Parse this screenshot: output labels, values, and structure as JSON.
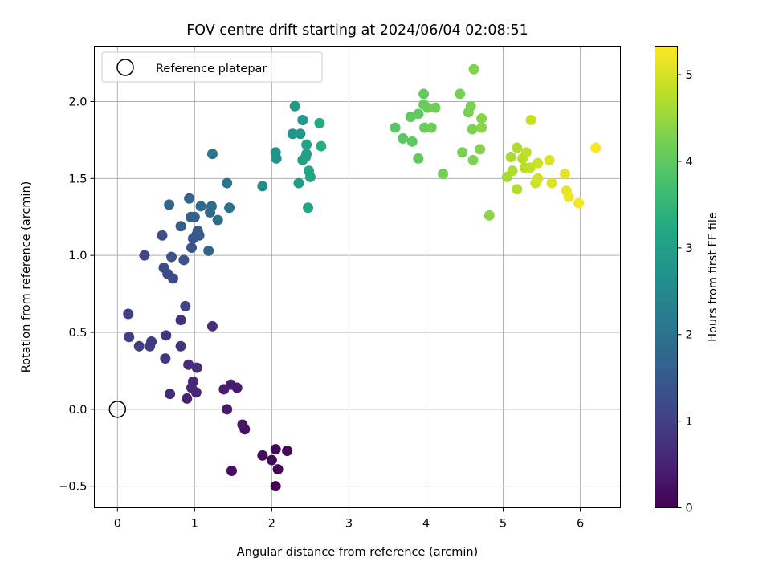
{
  "chart_data": {
    "type": "scatter",
    "title": "FOV centre drift starting at 2024/06/04 02:08:51",
    "xlabel": "Angular distance from reference (arcmin)",
    "ylabel": "Rotation from reference (arcmin)",
    "xlim": [
      -0.3,
      6.52
    ],
    "ylim": [
      -0.64,
      2.36
    ],
    "xticks": [
      0,
      1,
      2,
      3,
      4,
      5,
      6
    ],
    "yticks": [
      -0.5,
      0.0,
      0.5,
      1.0,
      1.5,
      2.0
    ],
    "xtick_labels": [
      "0",
      "1",
      "2",
      "3",
      "4",
      "5",
      "6"
    ],
    "ytick_labels": [
      "−0.5",
      "0.0",
      "0.5",
      "1.0",
      "1.5",
      "2.0"
    ],
    "grid": true,
    "legend": {
      "location": "upper-left",
      "entries": [
        "Reference platepar"
      ]
    },
    "reference_point": {
      "x": 0,
      "y": 0
    },
    "colorbar": {
      "label": "Hours from first FF file",
      "range": [
        0,
        5.33
      ],
      "ticks": [
        0,
        1,
        2,
        3,
        4,
        5
      ],
      "tick_labels": [
        "0",
        "1",
        "2",
        "3",
        "4",
        "5"
      ],
      "colormap": "viridis"
    },
    "points": [
      [
        2.05,
        -0.5,
        0.02
      ],
      [
        2.08,
        -0.39,
        0.05
      ],
      [
        2.05,
        -0.26,
        0.08
      ],
      [
        2.2,
        -0.27,
        0.1
      ],
      [
        2.0,
        -0.33,
        0.12
      ],
      [
        1.88,
        -0.3,
        0.15
      ],
      [
        1.48,
        -0.4,
        0.2
      ],
      [
        1.65,
        -0.13,
        0.28
      ],
      [
        1.62,
        -0.1,
        0.32
      ],
      [
        1.42,
        0.0,
        0.36
      ],
      [
        1.55,
        0.14,
        0.4
      ],
      [
        1.47,
        0.16,
        0.44
      ],
      [
        1.38,
        0.13,
        0.48
      ],
      [
        0.9,
        0.07,
        0.52
      ],
      [
        1.02,
        0.11,
        0.55
      ],
      [
        0.98,
        0.18,
        0.58
      ],
      [
        0.96,
        0.14,
        0.6
      ],
      [
        0.92,
        0.29,
        0.63
      ],
      [
        0.68,
        0.1,
        0.65
      ],
      [
        1.03,
        0.27,
        0.68
      ],
      [
        1.23,
        0.54,
        0.72
      ],
      [
        0.82,
        0.58,
        0.75
      ],
      [
        0.82,
        0.41,
        0.78
      ],
      [
        0.63,
        0.48,
        0.82
      ],
      [
        0.62,
        0.33,
        0.85
      ],
      [
        0.44,
        0.44,
        0.88
      ],
      [
        0.42,
        0.41,
        0.92
      ],
      [
        0.28,
        0.41,
        0.96
      ],
      [
        0.15,
        0.47,
        1.0
      ],
      [
        0.14,
        0.62,
        1.04
      ],
      [
        0.88,
        0.67,
        1.08
      ],
      [
        0.35,
        1.0,
        1.1
      ],
      [
        0.72,
        0.85,
        1.14
      ],
      [
        0.65,
        0.88,
        1.18
      ],
      [
        0.6,
        0.92,
        1.22
      ],
      [
        0.58,
        1.13,
        1.26
      ],
      [
        0.7,
        0.99,
        1.3
      ],
      [
        0.86,
        0.97,
        1.34
      ],
      [
        0.96,
        1.05,
        1.38
      ],
      [
        0.98,
        1.11,
        1.42
      ],
      [
        1.02,
        1.13,
        1.46
      ],
      [
        1.04,
        1.16,
        1.5
      ],
      [
        1.06,
        1.13,
        1.54
      ],
      [
        0.82,
        1.19,
        1.58
      ],
      [
        0.95,
        1.25,
        1.62
      ],
      [
        1.0,
        1.25,
        1.66
      ],
      [
        0.93,
        1.37,
        1.7
      ],
      [
        0.67,
        1.33,
        1.74
      ],
      [
        1.18,
        1.03,
        1.78
      ],
      [
        1.08,
        1.32,
        1.82
      ],
      [
        1.2,
        1.28,
        1.86
      ],
      [
        1.22,
        1.32,
        1.9
      ],
      [
        1.3,
        1.23,
        1.94
      ],
      [
        1.45,
        1.31,
        1.98
      ],
      [
        1.42,
        1.47,
        2.04
      ],
      [
        1.23,
        1.66,
        2.1
      ],
      [
        1.88,
        1.45,
        2.6
      ],
      [
        2.05,
        1.67,
        2.66
      ],
      [
        2.06,
        1.63,
        2.72
      ],
      [
        2.27,
        1.79,
        2.76
      ],
      [
        2.37,
        1.79,
        2.8
      ],
      [
        2.3,
        1.97,
        2.84
      ],
      [
        2.4,
        1.88,
        2.88
      ],
      [
        2.35,
        1.47,
        2.92
      ],
      [
        2.4,
        1.62,
        2.96
      ],
      [
        2.44,
        1.64,
        3.0
      ],
      [
        2.45,
        1.66,
        3.04
      ],
      [
        2.45,
        1.72,
        3.08
      ],
      [
        2.48,
        1.55,
        3.12
      ],
      [
        2.5,
        1.51,
        3.16
      ],
      [
        2.47,
        1.31,
        3.2
      ],
      [
        2.62,
        1.86,
        3.24
      ],
      [
        2.64,
        1.71,
        3.28
      ],
      [
        3.6,
        1.83,
        3.94
      ],
      [
        3.7,
        1.76,
        3.96
      ],
      [
        3.82,
        1.74,
        3.98
      ],
      [
        3.8,
        1.9,
        4.0
      ],
      [
        3.9,
        1.92,
        4.02
      ],
      [
        3.9,
        1.63,
        4.04
      ],
      [
        3.97,
        2.05,
        4.06
      ],
      [
        3.97,
        1.98,
        4.08
      ],
      [
        3.98,
        1.83,
        4.1
      ],
      [
        4.02,
        1.96,
        4.12
      ],
      [
        4.07,
        1.83,
        4.14
      ],
      [
        4.12,
        1.96,
        4.16
      ],
      [
        4.22,
        1.53,
        4.18
      ],
      [
        4.44,
        2.05,
        4.2
      ],
      [
        4.47,
        1.67,
        4.22
      ],
      [
        4.55,
        1.93,
        4.24
      ],
      [
        4.58,
        1.97,
        4.26
      ],
      [
        4.6,
        1.82,
        4.28
      ],
      [
        4.61,
        1.62,
        4.3
      ],
      [
        4.62,
        2.21,
        4.32
      ],
      [
        4.7,
        1.69,
        4.34
      ],
      [
        4.72,
        1.89,
        4.36
      ],
      [
        4.72,
        1.83,
        4.38
      ],
      [
        4.82,
        1.26,
        4.42
      ],
      [
        5.05,
        1.51,
        4.6
      ],
      [
        5.1,
        1.64,
        4.64
      ],
      [
        5.12,
        1.55,
        4.68
      ],
      [
        5.18,
        1.7,
        4.7
      ],
      [
        5.18,
        1.43,
        4.72
      ],
      [
        5.25,
        1.63,
        4.76
      ],
      [
        5.28,
        1.57,
        4.78
      ],
      [
        5.3,
        1.67,
        4.82
      ],
      [
        5.35,
        1.57,
        4.85
      ],
      [
        5.36,
        1.88,
        4.88
      ],
      [
        5.42,
        1.47,
        4.92
      ],
      [
        5.45,
        1.6,
        4.95
      ],
      [
        5.45,
        1.5,
        4.98
      ],
      [
        5.6,
        1.62,
        5.02
      ],
      [
        5.63,
        1.47,
        5.06
      ],
      [
        5.8,
        1.53,
        5.12
      ],
      [
        5.82,
        1.42,
        5.16
      ],
      [
        5.85,
        1.38,
        5.2
      ],
      [
        5.98,
        1.34,
        5.26
      ],
      [
        6.2,
        1.7,
        5.32
      ]
    ]
  }
}
